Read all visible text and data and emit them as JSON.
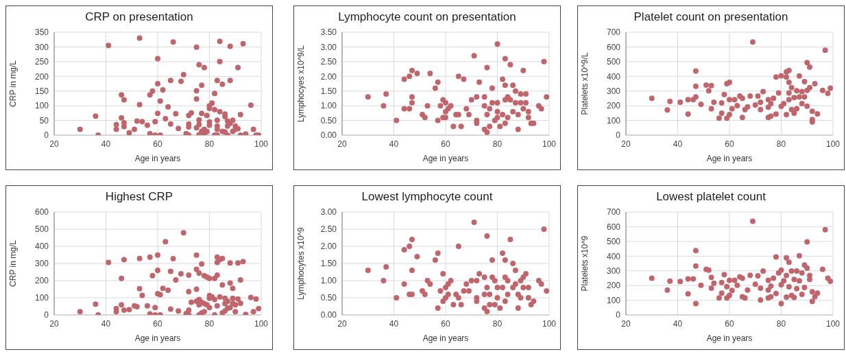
{
  "chart_data": [
    {
      "type": "scatter",
      "title": "CRP on presentation",
      "xlabel": "Age in years",
      "ylabel": "CRP in mg/L",
      "color": "#c0656b",
      "marker": "circle",
      "grid": true,
      "xlim": [
        20,
        100
      ],
      "xticks": [
        20,
        40,
        60,
        80,
        100
      ],
      "ylim": [
        0,
        350
      ],
      "yticks": [
        0,
        50,
        100,
        150,
        200,
        250,
        300,
        350
      ],
      "x": [
        30,
        36,
        37,
        41,
        44,
        44,
        46,
        46,
        47,
        47,
        47,
        49,
        51,
        52,
        53,
        53,
        54,
        56,
        57,
        57,
        58,
        59,
        59,
        60,
        60,
        60,
        61,
        61,
        62,
        63,
        64,
        65,
        65,
        66,
        67,
        68,
        69,
        70,
        71,
        72,
        72,
        72,
        72,
        73,
        75,
        75,
        75,
        75,
        76,
        76,
        76,
        76,
        77,
        77,
        77,
        78,
        78,
        78,
        79,
        79,
        80,
        80,
        80,
        80,
        81,
        82,
        82,
        82,
        83,
        83,
        83,
        83,
        83,
        84,
        84,
        84,
        85,
        85,
        86,
        86,
        86,
        87,
        87,
        87,
        88,
        88,
        88,
        89,
        89,
        90,
        90,
        91,
        91,
        92,
        92,
        93,
        94,
        96,
        97,
        98,
        99
      ],
      "values": [
        20,
        65,
        0,
        305,
        36,
        20,
        137,
        59,
        120,
        42,
        29,
        8,
        20,
        48,
        330,
        104,
        46,
        34,
        5,
        137,
        150,
        46,
        0,
        260,
        175,
        74,
        0,
        116,
        154,
        56,
        96,
        38,
        186,
        317,
        73,
        23,
        183,
        206,
        5,
        0,
        38,
        28,
        67,
        76,
        299,
        151,
        123,
        25,
        240,
        52,
        36,
        2,
        170,
        74,
        13,
        230,
        20,
        0,
        67,
        12,
        45,
        34,
        91,
        100,
        109,
        142,
        87,
        0,
        186,
        51,
        31,
        20,
        0,
        319,
        250,
        80,
        173,
        13,
        72,
        63,
        11,
        0,
        31,
        48,
        302,
        186,
        40,
        51,
        13,
        31,
        20,
        230,
        22,
        70,
        0,
        311,
        4,
        102,
        20,
        0,
        0
      ]
    },
    {
      "type": "scatter",
      "title": "Lymphocyte count on presentation",
      "xlabel": "Age in years",
      "ylabel": "Lymphocyes x10^9/L",
      "color": "#c0656b",
      "marker": "circle",
      "grid": true,
      "xlim": [
        20,
        100
      ],
      "xticks": [
        20,
        40,
        60,
        80,
        100
      ],
      "ylim": [
        0,
        3.5
      ],
      "yticks": [
        {
          "value": 0,
          "label": "0.00"
        },
        {
          "value": 0.5,
          "label": "0.50"
        },
        {
          "value": 1,
          "label": "1.00"
        },
        {
          "value": 1.5,
          "label": "1.50"
        },
        {
          "value": 2,
          "label": "2.00"
        },
        {
          "value": 2.5,
          "label": "2.50"
        },
        {
          "value": 3,
          "label": "3.00"
        },
        {
          "value": 3.5,
          "label": "3.50"
        }
      ],
      "x": [
        30,
        36,
        37,
        41,
        44,
        44,
        46,
        46,
        47,
        47,
        47,
        49,
        51,
        52,
        53,
        54,
        56,
        57,
        57,
        58,
        59,
        59,
        60,
        60,
        60,
        61,
        62,
        63,
        64,
        65,
        65,
        66,
        67,
        68,
        69,
        70,
        71,
        72,
        72,
        72,
        73,
        75,
        75,
        75,
        76,
        76,
        76,
        77,
        77,
        78,
        78,
        79,
        80,
        80,
        80,
        80,
        81,
        82,
        82,
        83,
        83,
        83,
        83,
        84,
        84,
        85,
        85,
        86,
        86,
        87,
        87,
        88,
        88,
        89,
        89,
        90,
        90,
        91,
        91,
        92,
        92,
        93,
        94,
        96,
        97,
        98,
        99
      ],
      "values": [
        1.3,
        1.0,
        1.4,
        0.5,
        1.9,
        0.9,
        2.0,
        0.9,
        2.2,
        1.3,
        1.1,
        2.1,
        0.7,
        0.6,
        1.0,
        2.1,
        1.6,
        1.8,
        0.5,
        1.0,
        1.2,
        0.6,
        1.1,
        0.6,
        0.8,
        0.9,
        1.0,
        0.3,
        0.7,
        2.0,
        0.7,
        0.3,
        1.9,
        0.9,
        0.7,
        1.2,
        2.7,
        1.3,
        0.5,
        0.4,
        1.8,
        1.3,
        1.0,
        0.2,
        2.3,
        0.7,
        0.1,
        0.9,
        0.3,
        1.6,
        1.1,
        0.5,
        3.1,
        1.1,
        0.8,
        0.6,
        0.3,
        1.9,
        0.7,
        2.6,
        1.7,
        1.2,
        0.4,
        1.3,
        0.6,
        2.4,
        1.2,
        1.7,
        0.8,
        1.5,
        1.1,
        0.2,
        0.7,
        1.4,
        1.1,
        2.2,
        0.9,
        1.4,
        1.1,
        0.8,
        0.6,
        0.4,
        0.4,
        1.0,
        0.9,
        2.5,
        1.3
      ]
    },
    {
      "type": "scatter",
      "title": "Platelet count on presentation",
      "xlabel": "Age in years",
      "ylabel": "Platelets x10^9/L",
      "color": "#c0656b",
      "marker": "circle",
      "grid": true,
      "xlim": [
        20,
        100
      ],
      "xticks": [
        20,
        40,
        60,
        80,
        100
      ],
      "ylim": [
        0,
        700
      ],
      "yticks": [
        0,
        100,
        200,
        300,
        400,
        500,
        600,
        700
      ],
      "x": [
        30,
        36,
        37,
        41,
        44,
        44,
        46,
        47,
        47,
        47,
        49,
        51,
        52,
        53,
        53,
        54,
        56,
        57,
        57,
        58,
        59,
        59,
        60,
        60,
        60,
        61,
        62,
        63,
        64,
        65,
        65,
        66,
        67,
        68,
        69,
        70,
        71,
        72,
        72,
        73,
        75,
        75,
        75,
        76,
        76,
        77,
        78,
        78,
        79,
        80,
        80,
        81,
        82,
        82,
        82,
        83,
        83,
        83,
        83,
        84,
        84,
        85,
        85,
        86,
        86,
        87,
        87,
        88,
        88,
        89,
        89,
        90,
        90,
        90,
        91,
        91,
        92,
        92,
        92,
        93,
        94,
        96,
        97,
        98,
        99
      ],
      "values": [
        251,
        171,
        230,
        224,
        144,
        242,
        242,
        260,
        332,
        436,
        210,
        341,
        302,
        337,
        180,
        224,
        115,
        219,
        149,
        276,
        115,
        350,
        359,
        140,
        241,
        180,
        241,
        201,
        266,
        120,
        251,
        174,
        192,
        266,
        634,
        205,
        266,
        174,
        224,
        296,
        242,
        120,
        190,
        215,
        129,
        251,
        144,
        395,
        287,
        404,
        196,
        215,
        140,
        395,
        431,
        440,
        287,
        242,
        359,
        323,
        174,
        255,
        149,
        302,
        180,
        402,
        260,
        296,
        215,
        364,
        260,
        494,
        197,
        305,
        463,
        323,
        162,
        90,
        106,
        350,
        145,
        305,
        578,
        285,
        320
      ]
    },
    {
      "type": "scatter",
      "title": "Highest CRP",
      "xlabel": "Age in years",
      "ylabel": "CRP in mg/L",
      "color": "#c0656b",
      "marker": "circle",
      "grid": true,
      "xlim": [
        20,
        100
      ],
      "xticks": [
        20,
        40,
        60,
        80,
        100
      ],
      "ylim": [
        0,
        600
      ],
      "yticks": [
        0,
        100,
        200,
        300,
        400,
        500,
        600
      ],
      "x": [
        30,
        36,
        37,
        41,
        44,
        44,
        46,
        46,
        47,
        47,
        49,
        51,
        52,
        53,
        53,
        54,
        56,
        57,
        57,
        58,
        59,
        59,
        60,
        60,
        60,
        61,
        61,
        62,
        63,
        64,
        65,
        65,
        66,
        67,
        68,
        69,
        70,
        71,
        72,
        72,
        72,
        72,
        73,
        75,
        75,
        75,
        75,
        76,
        76,
        76,
        76,
        77,
        77,
        77,
        78,
        78,
        78,
        79,
        79,
        80,
        80,
        80,
        80,
        81,
        82,
        82,
        82,
        83,
        83,
        83,
        83,
        84,
        84,
        85,
        85,
        85,
        86,
        86,
        86,
        87,
        87,
        88,
        88,
        88,
        89,
        89,
        89,
        90,
        90,
        91,
        91,
        92,
        92,
        93,
        94,
        96,
        97,
        98,
        99
      ],
      "values": [
        19,
        63,
        0,
        306,
        37,
        19,
        213,
        59,
        322,
        28,
        31,
        53,
        48,
        329,
        153,
        114,
        53,
        337,
        6,
        229,
        43,
        0,
        349,
        260,
        124,
        118,
        0,
        155,
        427,
        144,
        254,
        34,
        328,
        204,
        23,
        240,
        479,
        8,
        232,
        136,
        28,
        0,
        74,
        349,
        266,
        150,
        80,
        244,
        90,
        59,
        0,
        297,
        74,
        12,
        229,
        66,
        19,
        221,
        59,
        213,
        113,
        97,
        43,
        105,
        213,
        0,
        90,
        337,
        306,
        232,
        53,
        322,
        105,
        329,
        175,
        12,
        97,
        66,
        23,
        80,
        39,
        303,
        186,
        43,
        155,
        97,
        68,
        59,
        19,
        303,
        93,
        204,
        68,
        311,
        3,
        102,
        19,
        93,
        37
      ]
    },
    {
      "type": "scatter",
      "title": "Lowest lymphocyte count",
      "xlabel": "Age in years",
      "ylabel": "Lymphocytes x10^9",
      "color": "#c0656b",
      "marker": "circle",
      "grid": true,
      "xlim": [
        20,
        100
      ],
      "xticks": [
        20,
        40,
        60,
        80,
        100
      ],
      "ylim": [
        0,
        3
      ],
      "yticks": [
        {
          "value": 0,
          "label": "0.00"
        },
        {
          "value": 0.5,
          "label": "0.50"
        },
        {
          "value": 1,
          "label": "1.00"
        },
        {
          "value": 1.5,
          "label": "1.50"
        },
        {
          "value": 2,
          "label": "2.00"
        },
        {
          "value": 2.5,
          "label": "2.50"
        },
        {
          "value": 3,
          "label": "3.00"
        }
      ],
      "x": [
        30,
        36,
        37,
        41,
        44,
        44,
        46,
        46,
        47,
        47,
        47,
        49,
        51,
        52,
        53,
        54,
        56,
        57,
        57,
        58,
        59,
        59,
        60,
        60,
        61,
        61,
        62,
        63,
        64,
        65,
        65,
        66,
        67,
        68,
        69,
        70,
        71,
        72,
        72,
        72,
        73,
        75,
        75,
        75,
        76,
        76,
        76,
        77,
        77,
        78,
        78,
        79,
        79,
        80,
        80,
        81,
        82,
        82,
        83,
        83,
        83,
        84,
        84,
        85,
        86,
        86,
        87,
        87,
        88,
        88,
        89,
        89,
        90,
        90,
        91,
        92,
        92,
        93,
        94,
        96,
        97,
        98,
        99
      ],
      "values": [
        1.3,
        1.0,
        1.4,
        0.5,
        1.9,
        0.9,
        2.0,
        0.6,
        2.2,
        1.3,
        0.6,
        1.7,
        0.7,
        0.6,
        1.0,
        0.9,
        1.6,
        1.8,
        0.2,
        0.7,
        1.2,
        0.4,
        0.5,
        0.8,
        0.9,
        0.6,
        1.0,
        0.3,
        0.6,
        2.0,
        0.5,
        0.3,
        0.7,
        0.9,
        0.7,
        1.0,
        2.7,
        1.0,
        0.5,
        0.4,
        1.2,
        1.1,
        0.6,
        0.2,
        2.3,
        0.8,
        0.1,
        0.6,
        0.3,
        1.6,
        1.1,
        1.0,
        0.3,
        0.8,
        0.5,
        0.2,
        1.8,
        0.8,
        1.6,
        1.1,
        0.4,
        1.0,
        0.6,
        2.2,
        1.5,
        0.8,
        1.3,
        0.9,
        0.2,
        0.6,
        1.0,
        0.5,
        1.1,
        0.8,
        1.2,
        0.8,
        0.5,
        0.3,
        0.4,
        1.0,
        0.9,
        2.5,
        0.7
      ]
    },
    {
      "type": "scatter",
      "title": "Lowest platelet count",
      "xlabel": "Age in years",
      "ylabel": "Platelets x10^9",
      "color": "#c0656b",
      "marker": "circle",
      "grid": true,
      "xlim": [
        20,
        100
      ],
      "xticks": [
        20,
        40,
        60,
        80,
        100
      ],
      "ylim": [
        0,
        700
      ],
      "yticks": [
        0,
        100,
        200,
        300,
        400,
        500,
        600,
        700
      ],
      "x": [
        30,
        36,
        37,
        41,
        44,
        44,
        46,
        47,
        47,
        47,
        49,
        51,
        52,
        53,
        53,
        54,
        56,
        57,
        57,
        58,
        59,
        59,
        60,
        60,
        61,
        62,
        63,
        64,
        65,
        65,
        66,
        67,
        68,
        69,
        70,
        71,
        72,
        72,
        73,
        75,
        75,
        75,
        76,
        76,
        77,
        78,
        78,
        79,
        80,
        80,
        80,
        81,
        82,
        82,
        82,
        83,
        83,
        84,
        84,
        85,
        85,
        86,
        86,
        87,
        87,
        88,
        88,
        89,
        89,
        90,
        90,
        91,
        91,
        92,
        92,
        93,
        94,
        96,
        97,
        98,
        99
      ],
      "values": [
        250,
        169,
        230,
        227,
        144,
        245,
        245,
        77,
        333,
        437,
        202,
        310,
        304,
        256,
        182,
        216,
        115,
        220,
        148,
        274,
        115,
        193,
        133,
        236,
        167,
        236,
        202,
        259,
        124,
        250,
        115,
        169,
        270,
        637,
        209,
        266,
        101,
        182,
        299,
        236,
        115,
        169,
        196,
        124,
        250,
        146,
        394,
        286,
        77,
        304,
        205,
        232,
        121,
        389,
        268,
        358,
        191,
        299,
        133,
        241,
        119,
        299,
        178,
        403,
        232,
        286,
        140,
        340,
        187,
        497,
        319,
        268,
        241,
        157,
        92,
        124,
        148,
        310,
        580,
        250,
        229
      ]
    }
  ]
}
